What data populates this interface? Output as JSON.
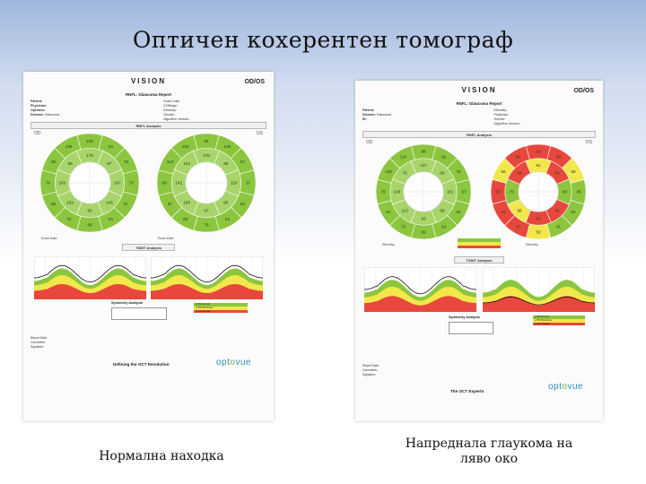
{
  "slide": {
    "title": "Оптичен кохерентен томограф",
    "caption_left": "Нормална находка",
    "caption_right_line1": "Напреднала глаукома на",
    "caption_right_line2": "ляво око"
  },
  "report_left": {
    "brand": "VISION",
    "odos": "OD/OS",
    "title": "RNFL: Glaucoma Report",
    "patient_labels": [
      "Patient:",
      "Physician:",
      "Operator:",
      "Disease:"
    ],
    "patient_values": [
      "",
      "",
      "",
      "Glaucoma"
    ],
    "exam_labels": [
      "Exam Date:",
      "DOB/age:",
      "Ethnicity:",
      "Gender:",
      "Algorithm Version:"
    ],
    "rnfl_section": "RNFL Analysis",
    "eye_od": "OD",
    "eye_os": "OS",
    "tsnit_section": "TSNIT Analysis",
    "symmetry_title": "Symmetry Analysis",
    "legend": [
      "p>5% Normal",
      "p<5% Borderline",
      "p<1% Outside"
    ],
    "footer_labels": [
      "Report Date:",
      "Comments:",
      "Signature:"
    ],
    "tagline": "Defining the OCT Revolution",
    "logo_pre": "opt",
    "logo_mid": "o",
    "logo_post": "vue",
    "wheel_od": {
      "inner": [
        "176",
        "97",
        "167",
        "140",
        "80",
        "182",
        "183",
        "95"
      ],
      "outer": [
        "100",
        "94",
        "76",
        "57",
        "57",
        "54",
        "69",
        "76",
        "86",
        "74",
        "90",
        "108"
      ]
    },
    "wheel_os": {
      "inner": [
        "176",
        "98",
        "110",
        "95",
        "97",
        "160",
        "142",
        "104"
      ],
      "outer": [
        "94",
        "100",
        "87",
        "57",
        "63",
        "54",
        "76",
        "83",
        "87",
        "89",
        "113",
        "102"
      ]
    },
    "colors": {
      "green_ring": "#8cc63f",
      "green_inner": "#a8d46a",
      "yellow": "#f2e84b",
      "red": "#e8473d"
    }
  },
  "report_right": {
    "brand": "VISION",
    "odos": "OD/OS",
    "title": "RNFL: Glaucoma Report",
    "patient_labels": [
      "Patient:",
      "Disease:",
      "ID:"
    ],
    "patient_values": [
      "",
      "Glaucoma",
      ""
    ],
    "exam_labels": [
      "Ethnicity:",
      "Physician:",
      "Gender:",
      "Algorithm Version:"
    ],
    "rnfl_section": "RNFL Analysis",
    "eye_od": "OD",
    "eye_os": "OS",
    "tsnit_section": "TSNIT Analysis",
    "symmetry_title": "Symmetry Analysis",
    "legend": [
      "p>5% Normal",
      "p<5% Borderline",
      "p<1% Outside"
    ],
    "footer_labels": [
      "Report Date:",
      "Comments:",
      "Signature:"
    ],
    "tagline": "The OCT Experts",
    "logo_pre": "opt",
    "logo_mid": "o",
    "logo_post": "vue",
    "wheel_od": {
      "inner": [
        "127",
        "84",
        "101",
        "88",
        "83",
        "110",
        "108",
        "76"
      ],
      "outer": [
        "98",
        "92",
        "76",
        "57",
        "52",
        "54",
        "69",
        "73",
        "81",
        "79",
        "108",
        "110"
      ]
    },
    "wheel_os": {
      "inner": [
        "91",
        "55",
        "80",
        "46",
        "54",
        "88",
        "76",
        "50"
      ],
      "outer": [
        "63",
        "50",
        "58",
        "45",
        "51",
        "41",
        "50",
        "47",
        "41",
        "55",
        "58",
        "60"
      ]
    },
    "colors": {
      "green_ring": "#8cc63f",
      "green_inner": "#a8d46a",
      "yellow": "#f2e84b",
      "red": "#e8473d"
    }
  }
}
